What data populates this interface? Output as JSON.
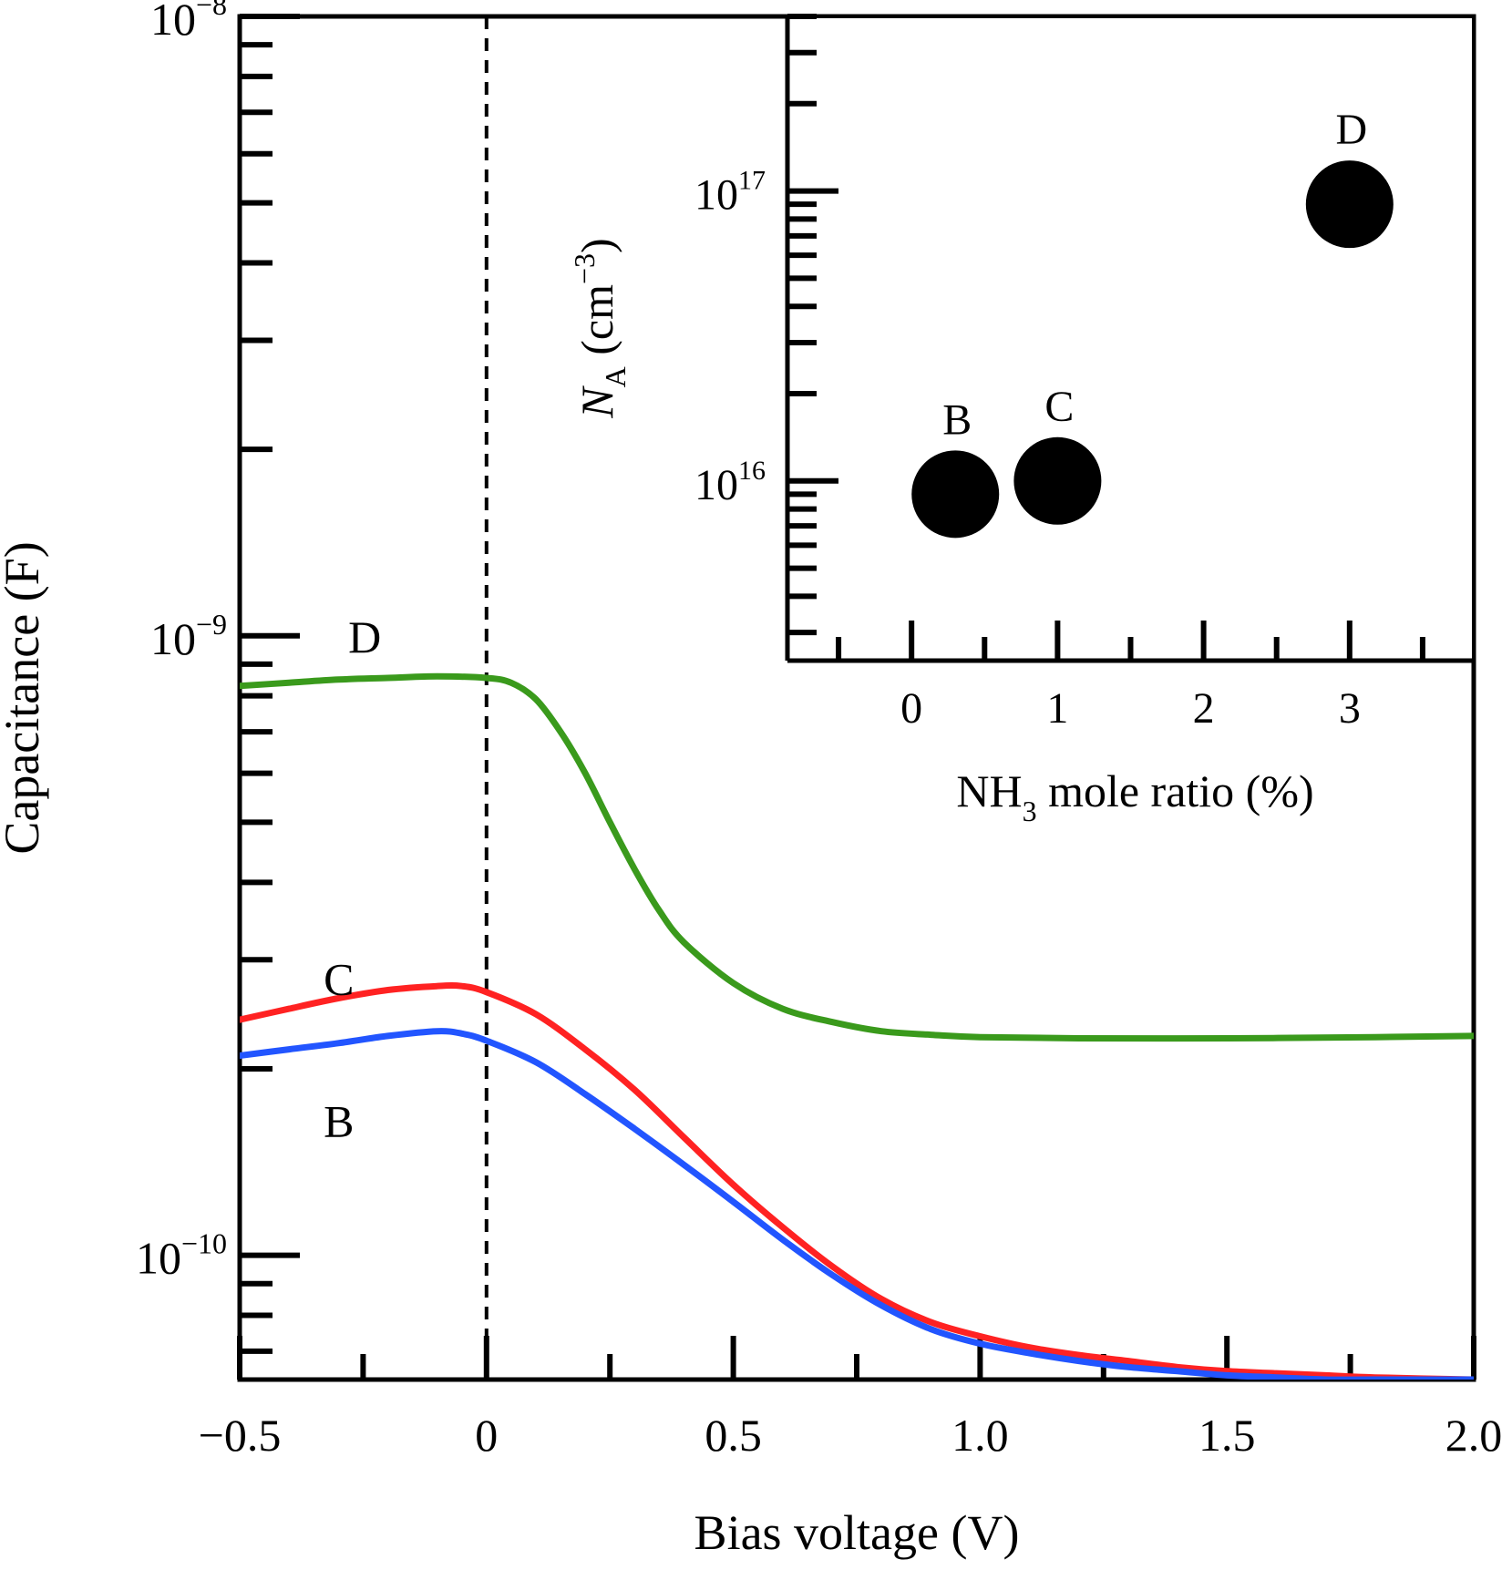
{
  "chart_data": [
    {
      "type": "line",
      "title": "",
      "xlabel": "Bias voltage (V)",
      "ylabel": "Capacitance (F)",
      "xlim": [
        -0.5,
        2.0
      ],
      "x_scale": "linear",
      "x_ticks": [
        -0.5,
        0,
        0.5,
        1.0,
        1.5,
        2.0
      ],
      "x_tick_labels": [
        "−0.5",
        "0",
        "0.5",
        "1.0",
        "1.5",
        "2.0"
      ],
      "ylim": [
        6.3e-11,
        1e-08
      ],
      "y_scale": "log",
      "y_ticks": [
        {
          "value": 1e-10,
          "base": "10",
          "exp": "−10"
        },
        {
          "value": 1e-09,
          "base": "10",
          "exp": "−9"
        },
        {
          "value": 1e-08,
          "base": "10",
          "exp": "−8"
        }
      ],
      "reference_lines": [
        {
          "x": 0,
          "style": "dashed",
          "color": "#000000"
        }
      ],
      "legend": "none",
      "grid": false,
      "series": [
        {
          "name": "D",
          "color": "#3a9a1c",
          "x": [
            -0.5,
            -0.4,
            -0.3,
            -0.2,
            -0.1,
            0.0,
            0.05,
            0.1,
            0.15,
            0.2,
            0.25,
            0.3,
            0.35,
            0.4,
            0.5,
            0.6,
            0.7,
            0.8,
            0.9,
            1.0,
            1.2,
            1.5,
            1.8,
            2.0
          ],
          "y": [
            8.3e-10,
            8.4e-10,
            8.5e-10,
            8.55e-10,
            8.6e-10,
            8.55e-10,
            8.4e-10,
            7.9e-10,
            7e-10,
            6e-10,
            5e-10,
            4.2e-10,
            3.6e-10,
            3.2e-10,
            2.75e-10,
            2.5e-10,
            2.38e-10,
            2.3e-10,
            2.27e-10,
            2.25e-10,
            2.24e-10,
            2.24e-10,
            2.25e-10,
            2.26e-10
          ]
        },
        {
          "name": "C",
          "color": "#ff2222",
          "x": [
            -0.5,
            -0.4,
            -0.3,
            -0.2,
            -0.1,
            -0.05,
            0.0,
            0.1,
            0.2,
            0.3,
            0.4,
            0.5,
            0.6,
            0.7,
            0.8,
            0.9,
            1.0,
            1.1,
            1.2,
            1.3,
            1.4,
            1.5,
            1.6,
            1.7,
            1.8,
            2.0
          ],
          "y": [
            2.4e-10,
            2.5e-10,
            2.6e-10,
            2.68e-10,
            2.72e-10,
            2.72e-10,
            2.66e-10,
            2.45e-10,
            2.15e-10,
            1.85e-10,
            1.55e-10,
            1.3e-10,
            1.11e-10,
            9.6e-11,
            8.5e-11,
            7.8e-11,
            7.4e-11,
            7.1e-11,
            6.9e-11,
            6.75e-11,
            6.6e-11,
            6.5e-11,
            6.45e-11,
            6.4e-11,
            6.35e-11,
            6.3e-11
          ]
        },
        {
          "name": "B",
          "color": "#2255ff",
          "x": [
            -0.5,
            -0.4,
            -0.3,
            -0.2,
            -0.1,
            -0.05,
            0.0,
            0.1,
            0.2,
            0.3,
            0.4,
            0.5,
            0.6,
            0.7,
            0.8,
            0.9,
            1.0,
            1.1,
            1.2,
            1.3,
            1.4,
            1.5,
            1.6,
            1.7,
            1.8,
            2.0
          ],
          "y": [
            2.1e-10,
            2.15e-10,
            2.2e-10,
            2.26e-10,
            2.3e-10,
            2.28e-10,
            2.22e-10,
            2.05e-10,
            1.82e-10,
            1.6e-10,
            1.4e-10,
            1.22e-10,
            1.06e-10,
            9.3e-11,
            8.3e-11,
            7.6e-11,
            7.2e-11,
            6.95e-11,
            6.75e-11,
            6.6e-11,
            6.5e-11,
            6.4e-11,
            6.35e-11,
            6.3e-11,
            6.3e-11,
            6.3e-11
          ]
        }
      ],
      "curve_labels": [
        {
          "text": "D",
          "x": -0.28,
          "y": 1e-09
        },
        {
          "text": "C",
          "x": -0.33,
          "y": 2.8e-10
        },
        {
          "text": "B",
          "x": -0.33,
          "y": 1.65e-10
        }
      ]
    },
    {
      "type": "scatter",
      "title": "",
      "xlabel": {
        "main": "NH",
        "sub": "3",
        "rest": " mole ratio (%)"
      },
      "ylabel": {
        "symbol": "N",
        "sub": "A",
        "rest": " (cm",
        "sup": "−3",
        "close": ")"
      },
      "xlim": [
        -0.85,
        3.85
      ],
      "x_scale": "linear",
      "x_ticks": [
        0,
        1,
        2,
        3
      ],
      "x_tick_labels": [
        "0",
        "1",
        "2",
        "3"
      ],
      "ylim": [
        2400000000000000.0,
        4e+17
      ],
      "y_scale": "log",
      "y_ticks": [
        {
          "value": 1e+16,
          "base": "10",
          "exp": "16"
        },
        {
          "value": 1e+17,
          "base": "10",
          "exp": "17"
        }
      ],
      "marker": "filled-circle",
      "marker_color": "#000000",
      "legend": "none",
      "grid": false,
      "points": [
        {
          "label": "B",
          "x": 0.3,
          "y": 9000000000000000.0
        },
        {
          "label": "C",
          "x": 1.0,
          "y": 1e+16
        },
        {
          "label": "D",
          "x": 3.0,
          "y": 9e+16
        }
      ]
    }
  ]
}
